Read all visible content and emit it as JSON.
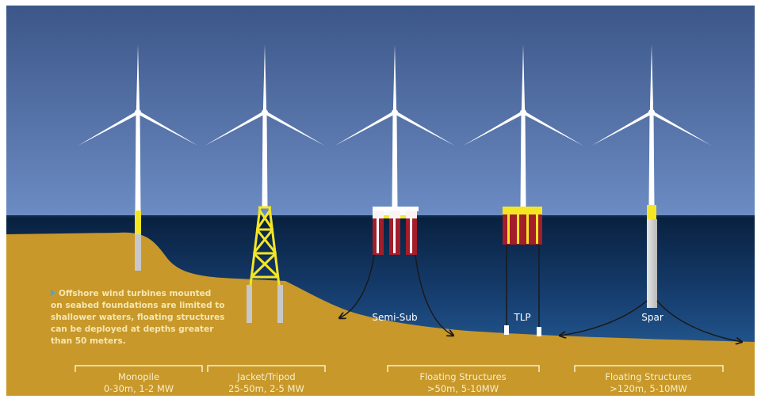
{
  "note": {
    "lines": [
      "Offshore wind turbines mounted",
      "on seabed foundations are limited to",
      "shallower waters, floating structures",
      "can be deployed at depths greater",
      "than 50 meters."
    ]
  },
  "structure_labels": {
    "semi_sub": "Semi-Sub",
    "tlp": "TLP",
    "spar": "Spar"
  },
  "categories": [
    {
      "name": "Monopile",
      "spec": "0-30m, 1-2 MW"
    },
    {
      "name": "Jacket/Tripod",
      "spec": "25-50m, 2-5 MW"
    },
    {
      "name": "Floating Structures",
      "spec": ">50m, 5-10MW"
    },
    {
      "name": "Floating Structures",
      "spec": ">120m, 5-10MW"
    }
  ],
  "colors": {
    "sky_top": "#3c5688",
    "sky_bottom": "#6c8cc4",
    "sea_top": "#08203e",
    "sea_bottom": "#1f4f88",
    "seabed": "#c8982a",
    "tower": "#ffffff",
    "transition_piece": "#f5e625",
    "float_red": "#a31d2b",
    "foundation_grey": "#c8c8c8",
    "label_cream": "#f8efc9"
  },
  "icons": {
    "note_bullet": "triangle-right-icon"
  }
}
